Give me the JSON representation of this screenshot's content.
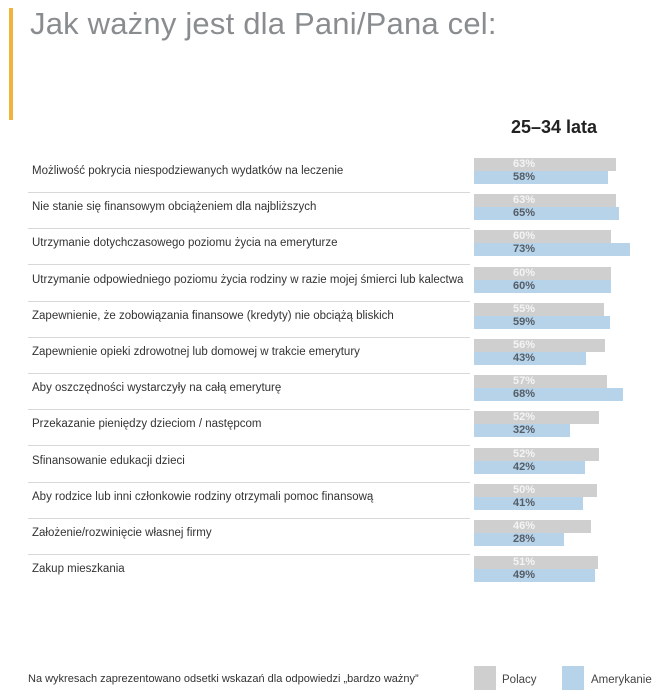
{
  "chart_data": {
    "type": "bar",
    "orientation": "horizontal",
    "title": "Jak ważny jest dla Pani/Pana cel:",
    "group_label": "25–34 lata",
    "categories": [
      "Możliwość pokrycia niespodziewanych wydatków na leczenie",
      "Nie stanie się finansowym obciążeniem dla najbliższych",
      "Utrzymanie dotychczasowego poziomu życia na emeryturze",
      "Utrzymanie odpowiedniego poziomu życia rodziny w razie mojej śmierci lub kalectwa",
      "Zapewnienie, że zobowiązania finansowe (kredyty) nie obciążą bliskich",
      "Zapewnienie opieki zdrowotnej lub domowej w trakcie emerytury",
      "Aby oszczędności wystarczyły na całą emeryturę",
      "Przekazanie pieniędzy dzieciom / następcom",
      "Sfinansowanie edukacji dzieci",
      "Aby rodzice lub inni członkowie rodziny otrzymali pomoc finansową",
      "Założenie/rozwinięcie własnej firmy",
      "Zakup mieszkania"
    ],
    "series": [
      {
        "name": "Polacy",
        "color": "#cfcfcf",
        "values": [
          63,
          63,
          60,
          60,
          55,
          56,
          57,
          52,
          52,
          50,
          46,
          51
        ]
      },
      {
        "name": "Amerykanie",
        "color": "#b6d3ea",
        "values": [
          58,
          65,
          73,
          60,
          59,
          43,
          68,
          32,
          42,
          41,
          28,
          49
        ]
      }
    ],
    "unit": "%",
    "legend_position": "bottom-right",
    "note": "Na wykresach zaprezentowano odsetki wskazań dla odpowiedzi „bardzo ważny”",
    "accent_color": "#f0b43c"
  }
}
